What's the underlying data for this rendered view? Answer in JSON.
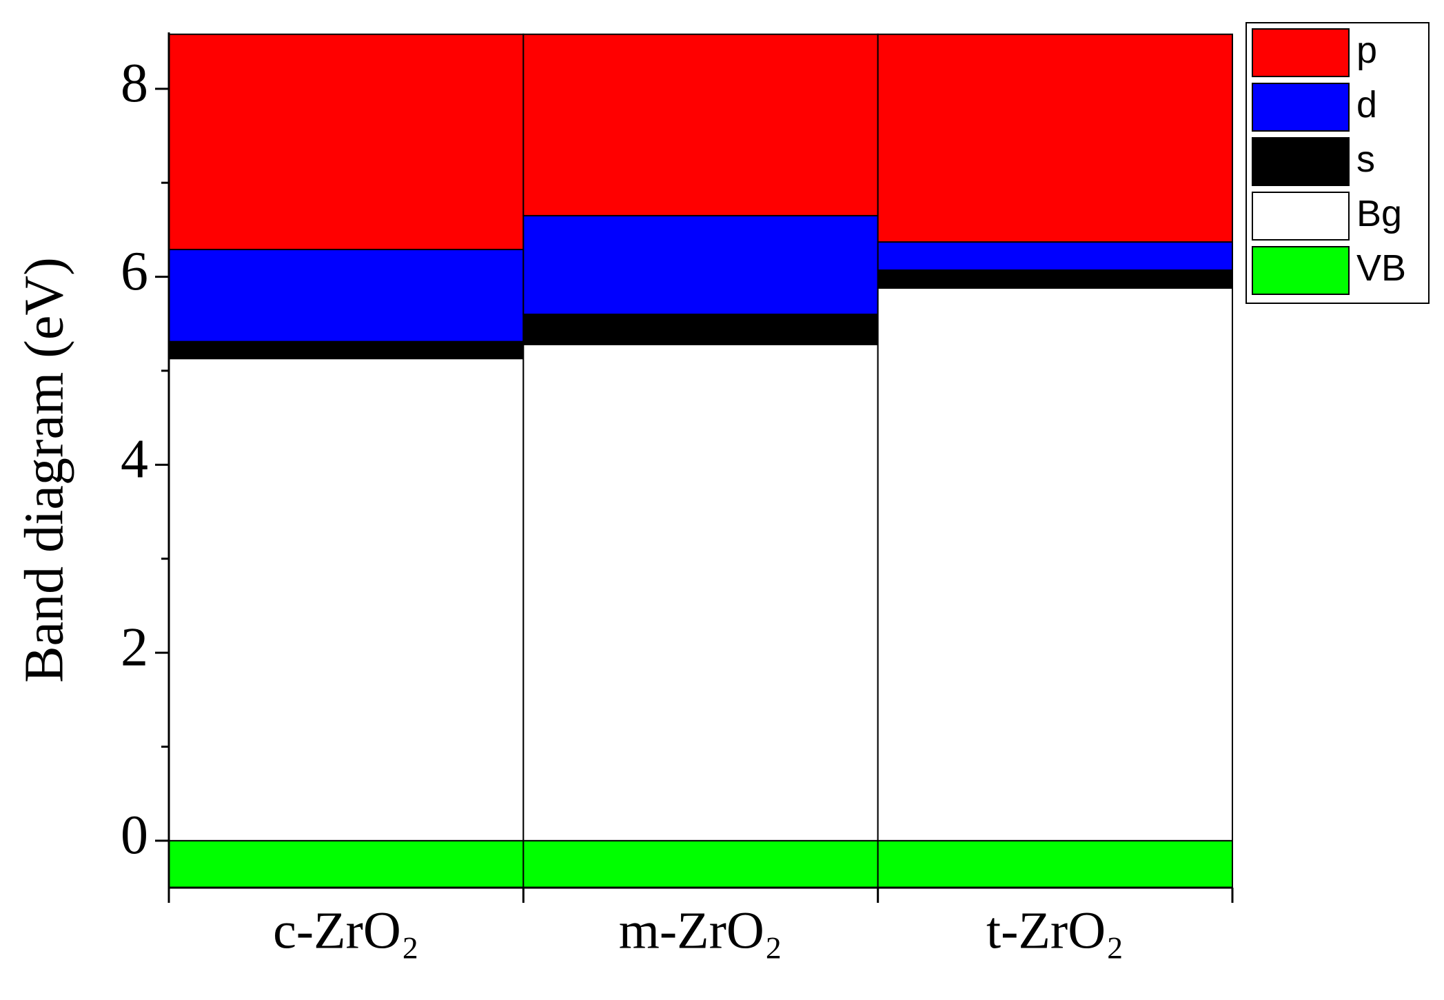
{
  "chart_data": {
    "type": "stacked_bar",
    "y_label": "Band diagram (eV)",
    "categories": [
      "c-ZrO₂",
      "m-ZrO₂",
      "t-ZrO₂"
    ],
    "series": [
      {
        "name": "VB",
        "color": "#00ff00",
        "values": [
          -0.5,
          -0.5,
          -0.5
        ]
      },
      {
        "name": "Bg",
        "color": "#ffffff",
        "values": [
          5.13,
          5.28,
          5.88
        ]
      },
      {
        "name": "s",
        "color": "#000000",
        "values": [
          0.18,
          0.32,
          0.19
        ]
      },
      {
        "name": "d",
        "color": "#0000ff",
        "values": [
          0.98,
          1.05,
          0.3
        ]
      },
      {
        "name": "p",
        "color": "#ff0000",
        "values": [
          2.29,
          1.93,
          2.21
        ]
      }
    ],
    "ylim": [
      -0.5,
      8.6
    ],
    "yticks": [
      0,
      2,
      4,
      6,
      8
    ],
    "yminorticks": [
      1,
      3,
      5,
      7
    ],
    "legend": "outside-top-right"
  }
}
